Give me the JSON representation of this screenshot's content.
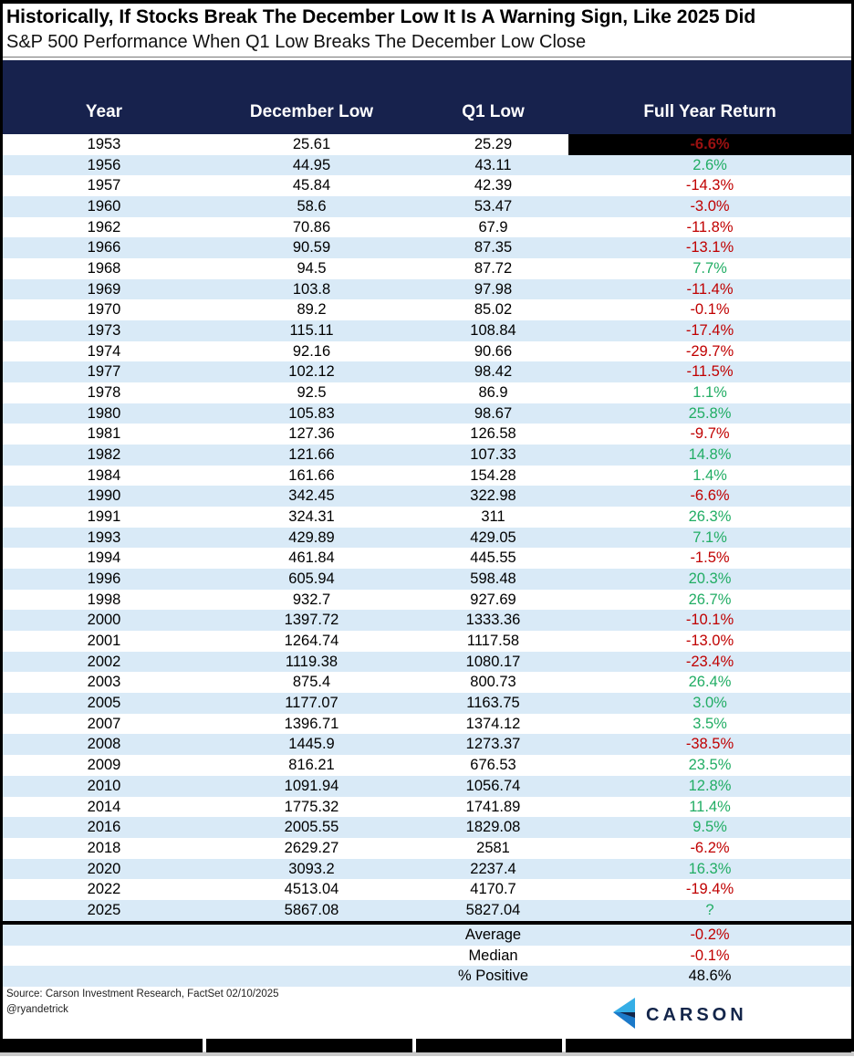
{
  "chart_data": {
    "type": "table",
    "title": "Historically, If Stocks Break The December Low It Is A Warning Sign, Like 2025 Did",
    "subtitle": "S&P 500 Performance When Q1 Low Breaks The December Low Close",
    "columns": [
      "Year",
      "December Low",
      "Q1 Low",
      "Full Year Return"
    ],
    "rows": [
      [
        "1953",
        "25.61",
        "25.29",
        "-6.6%",
        "highlight"
      ],
      [
        "1956",
        "44.95",
        "43.11",
        "2.6%",
        "green"
      ],
      [
        "1957",
        "45.84",
        "42.39",
        "-14.3%",
        "red"
      ],
      [
        "1960",
        "58.6",
        "53.47",
        "-3.0%",
        "red"
      ],
      [
        "1962",
        "70.86",
        "67.9",
        "-11.8%",
        "red"
      ],
      [
        "1966",
        "90.59",
        "87.35",
        "-13.1%",
        "red"
      ],
      [
        "1968",
        "94.5",
        "87.72",
        "7.7%",
        "green"
      ],
      [
        "1969",
        "103.8",
        "97.98",
        "-11.4%",
        "red"
      ],
      [
        "1970",
        "89.2",
        "85.02",
        "-0.1%",
        "red"
      ],
      [
        "1973",
        "115.11",
        "108.84",
        "-17.4%",
        "red"
      ],
      [
        "1974",
        "92.16",
        "90.66",
        "-29.7%",
        "red"
      ],
      [
        "1977",
        "102.12",
        "98.42",
        "-11.5%",
        "red"
      ],
      [
        "1978",
        "92.5",
        "86.9",
        "1.1%",
        "green"
      ],
      [
        "1980",
        "105.83",
        "98.67",
        "25.8%",
        "green"
      ],
      [
        "1981",
        "127.36",
        "126.58",
        "-9.7%",
        "red"
      ],
      [
        "1982",
        "121.66",
        "107.33",
        "14.8%",
        "green"
      ],
      [
        "1984",
        "161.66",
        "154.28",
        "1.4%",
        "green"
      ],
      [
        "1990",
        "342.45",
        "322.98",
        "-6.6%",
        "red"
      ],
      [
        "1991",
        "324.31",
        "311",
        "26.3%",
        "green"
      ],
      [
        "1993",
        "429.89",
        "429.05",
        "7.1%",
        "green"
      ],
      [
        "1994",
        "461.84",
        "445.55",
        "-1.5%",
        "red"
      ],
      [
        "1996",
        "605.94",
        "598.48",
        "20.3%",
        "green"
      ],
      [
        "1998",
        "932.7",
        "927.69",
        "26.7%",
        "green"
      ],
      [
        "2000",
        "1397.72",
        "1333.36",
        "-10.1%",
        "red"
      ],
      [
        "2001",
        "1264.74",
        "1117.58",
        "-13.0%",
        "red"
      ],
      [
        "2002",
        "1119.38",
        "1080.17",
        "-23.4%",
        "red"
      ],
      [
        "2003",
        "875.4",
        "800.73",
        "26.4%",
        "green"
      ],
      [
        "2005",
        "1177.07",
        "1163.75",
        "3.0%",
        "green"
      ],
      [
        "2007",
        "1396.71",
        "1374.12",
        "3.5%",
        "green"
      ],
      [
        "2008",
        "1445.9",
        "1273.37",
        "-38.5%",
        "red"
      ],
      [
        "2009",
        "816.21",
        "676.53",
        "23.5%",
        "green"
      ],
      [
        "2010",
        "1091.94",
        "1056.74",
        "12.8%",
        "green"
      ],
      [
        "2014",
        "1775.32",
        "1741.89",
        "11.4%",
        "green"
      ],
      [
        "2016",
        "2005.55",
        "1829.08",
        "9.5%",
        "green"
      ],
      [
        "2018",
        "2629.27",
        "2581",
        "-6.2%",
        "red"
      ],
      [
        "2020",
        "3093.2",
        "2237.4",
        "16.3%",
        "green"
      ],
      [
        "2022",
        "4513.04",
        "4170.7",
        "-19.4%",
        "red"
      ],
      [
        "2025",
        "5867.08",
        "5827.04",
        "?",
        "green"
      ]
    ],
    "summary": [
      {
        "label": "Average",
        "value": "-0.2%",
        "style": "red"
      },
      {
        "label": "Median",
        "value": "-0.1%",
        "style": "red"
      },
      {
        "label": "% Positive",
        "value": "48.6%",
        "style": "plain"
      }
    ],
    "source": "Source: Carson Investment Research, FactSet 02/10/2025",
    "handle": "@ryandetrick",
    "logo_text": "CARSON",
    "icons": {
      "logo": "carson-chevron-icon"
    },
    "colors": {
      "header_bg": "#17224d",
      "row_stripe": "#d9eaf7",
      "positive": "#21ad64",
      "negative": "#c00000",
      "highlight_bg": "#000000",
      "highlight_text": "#9b1111",
      "logo_navy": "#13254a",
      "logo_light_blue": "#35aee6",
      "logo_blue": "#1b79c9"
    }
  }
}
